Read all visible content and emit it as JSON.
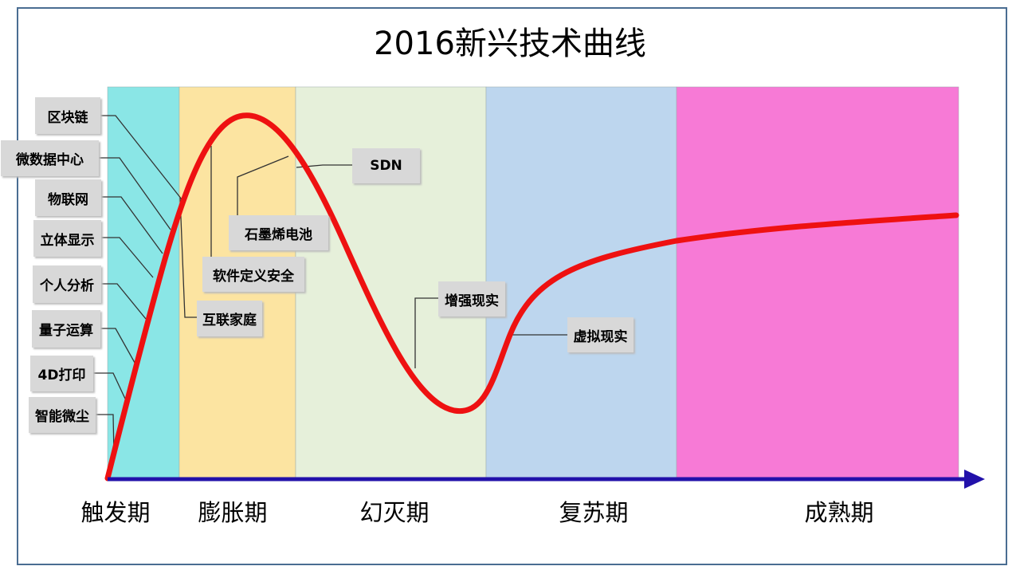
{
  "title": "2016新兴技术曲线",
  "phases": [
    {
      "label": "触发期",
      "color": "#8ae6e6"
    },
    {
      "label": "膨胀期",
      "color": "#fce4a1"
    },
    {
      "label": "幻灭期",
      "color": "#e6f0da"
    },
    {
      "label": "复苏期",
      "color": "#bdd6ee"
    },
    {
      "label": "成熟期",
      "color": "#f77ad6"
    }
  ],
  "technologies": [
    "区块链",
    "微数据中心",
    "物联网",
    "立体显示",
    "个人分析",
    "量子运算",
    "4D打印",
    "智能微尘",
    "SDN",
    "石墨烯电池",
    "软件定义安全",
    "互联家庭",
    "增强现实",
    "虚拟现实"
  ],
  "colors": {
    "curve": "#ee1111",
    "axis": "#2211aa",
    "frame": "#4a6d92",
    "label_bg": "#d8d8d8"
  }
}
